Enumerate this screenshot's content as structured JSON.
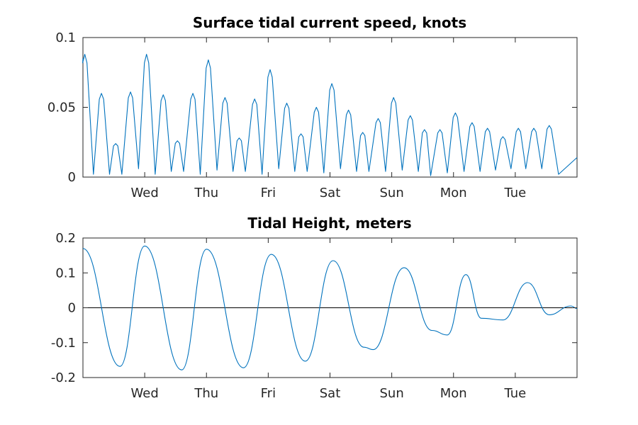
{
  "colors": {
    "series": "#0072bd",
    "axis": "#262626",
    "zero_line": "#000000"
  },
  "chart_data": [
    {
      "type": "line",
      "title": "Surface tidal current speed, knots",
      "xlabel": "",
      "ylabel": "",
      "grid": false,
      "ylim": [
        0,
        0.1
      ],
      "y_ticks": [
        "0",
        "0.05",
        "0.1"
      ],
      "y_tick_values": [
        0,
        0.05,
        0.1
      ],
      "xlim_days": [
        0,
        8
      ],
      "x_ticks": [
        "Wed",
        "Thu",
        "Fri",
        "Sat",
        "Sun",
        "Mon",
        "Tue"
      ],
      "x_tick_days": [
        1,
        2,
        3,
        4,
        5,
        6,
        7
      ],
      "series": [
        {
          "peaks": [
            [
              0.03,
              0.088
            ],
            [
              0.3,
              0.06
            ],
            [
              0.53,
              0.024
            ],
            [
              0.77,
              0.061
            ],
            [
              1.03,
              0.088
            ],
            [
              1.3,
              0.059
            ],
            [
              1.53,
              0.026
            ],
            [
              1.78,
              0.06
            ],
            [
              2.03,
              0.084
            ],
            [
              2.3,
              0.057
            ],
            [
              2.53,
              0.028
            ],
            [
              2.78,
              0.056
            ],
            [
              3.03,
              0.077
            ],
            [
              3.3,
              0.053
            ],
            [
              3.53,
              0.031
            ],
            [
              3.78,
              0.05
            ],
            [
              4.03,
              0.067
            ],
            [
              4.3,
              0.048
            ],
            [
              4.53,
              0.032
            ],
            [
              4.78,
              0.042
            ],
            [
              5.03,
              0.057
            ],
            [
              5.3,
              0.044
            ],
            [
              5.53,
              0.034
            ],
            [
              5.78,
              0.034
            ],
            [
              6.03,
              0.046
            ],
            [
              6.3,
              0.039
            ],
            [
              6.55,
              0.035
            ],
            [
              6.8,
              0.029
            ],
            [
              7.05,
              0.035
            ],
            [
              7.3,
              0.035
            ],
            [
              7.55,
              0.037
            ]
          ],
          "troughs": [
            [
              0.17,
              0.002
            ],
            [
              0.43,
              0.002
            ],
            [
              0.63,
              0.002
            ],
            [
              0.9,
              0.006
            ],
            [
              1.17,
              0.002
            ],
            [
              1.43,
              0.004
            ],
            [
              1.63,
              0.004
            ],
            [
              1.9,
              0.002
            ],
            [
              2.17,
              0.005
            ],
            [
              2.43,
              0.004
            ],
            [
              2.63,
              0.004
            ],
            [
              2.9,
              0.002
            ],
            [
              3.17,
              0.006
            ],
            [
              3.43,
              0.004
            ],
            [
              3.63,
              0.004
            ],
            [
              3.9,
              0.003
            ],
            [
              4.17,
              0.006
            ],
            [
              4.43,
              0.004
            ],
            [
              4.63,
              0.004
            ],
            [
              4.9,
              0.004
            ],
            [
              5.17,
              0.005
            ],
            [
              5.43,
              0.004
            ],
            [
              5.63,
              0.001
            ],
            [
              5.9,
              0.003
            ],
            [
              6.17,
              0.004
            ],
            [
              6.43,
              0.004
            ],
            [
              6.68,
              0.005
            ],
            [
              6.93,
              0.006
            ],
            [
              7.17,
              0.006
            ],
            [
              7.43,
              0.006
            ],
            [
              7.7,
              0.002
            ]
          ],
          "end": [
            8,
            0.014
          ]
        }
      ]
    },
    {
      "type": "line",
      "title": "Tidal Height, meters",
      "xlabel": "",
      "ylabel": "",
      "grid": false,
      "ylim": [
        -0.2,
        0.2
      ],
      "y_ticks": [
        "-0.2",
        "-0.1",
        "0",
        "0.1",
        "0.2"
      ],
      "y_tick_values": [
        -0.2,
        -0.1,
        0,
        0.1,
        0.2
      ],
      "xlim_days": [
        0,
        8
      ],
      "x_ticks": [
        "Wed",
        "Thu",
        "Fri",
        "Sat",
        "Sun",
        "Mon",
        "Tue"
      ],
      "x_tick_days": [
        1,
        2,
        3,
        4,
        5,
        6,
        7
      ],
      "reference_line": 0,
      "series": [
        {
          "points": [
            [
              0,
              0.17
            ],
            [
              0.6,
              -0.168
            ],
            [
              1.0,
              0.177
            ],
            [
              1.6,
              -0.178
            ],
            [
              2.0,
              0.168
            ],
            [
              2.6,
              -0.172
            ],
            [
              3.05,
              0.153
            ],
            [
              3.6,
              -0.153
            ],
            [
              4.05,
              0.135
            ],
            [
              4.55,
              -0.113
            ],
            [
              4.7,
              -0.12
            ],
            [
              5.2,
              0.115
            ],
            [
              5.65,
              -0.065
            ],
            [
              5.9,
              -0.078
            ],
            [
              6.2,
              0.095
            ],
            [
              6.45,
              -0.03
            ],
            [
              6.8,
              -0.035
            ],
            [
              7.2,
              0.072
            ],
            [
              7.55,
              -0.02
            ],
            [
              7.9,
              0.005
            ],
            [
              8,
              -0.002
            ]
          ]
        }
      ]
    }
  ]
}
